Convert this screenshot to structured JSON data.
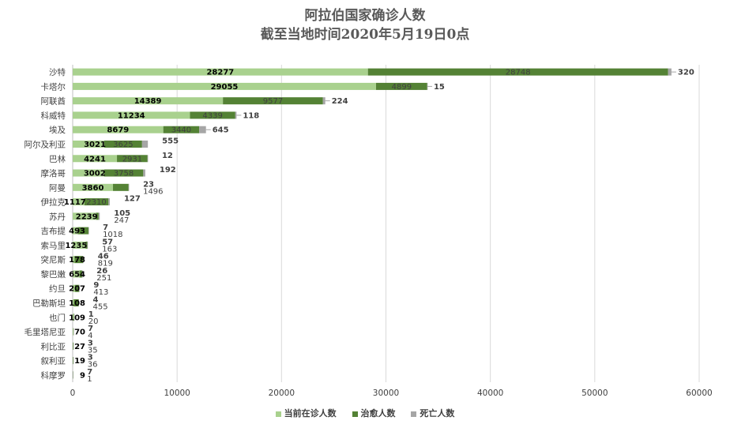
{
  "title": "阿拉伯国家确诊人数",
  "subtitle": "截至当地时间2020年5月19日0点",
  "colors": {
    "current": "#a9d18e",
    "recovered": "#548235",
    "deaths": "#a6a6a6"
  },
  "chart_data": {
    "type": "bar",
    "orientation": "horizontal",
    "stacked": true,
    "title": "阿拉伯国家确诊人数",
    "subtitle": "截至当地时间2020年5月19日0点",
    "categories": [
      "沙特",
      "卡塔尔",
      "阿联酋",
      "科威特",
      "埃及",
      "阿尔及利亚",
      "巴林",
      "摩洛哥",
      "阿曼",
      "伊拉克",
      "苏丹",
      "吉布提",
      "索马里",
      "突尼斯",
      "黎巴嫩",
      "约旦",
      "巴勒斯坦",
      "也门",
      "毛里塔尼亚",
      "利比亚",
      "叙利亚",
      "科摩罗"
    ],
    "series": [
      {
        "name": "当前在诊人数",
        "values": [
          28277,
          29055,
          14389,
          11234,
          8679,
          3021,
          4241,
          3002,
          3860,
          1117,
          2239,
          493,
          1235,
          178,
          654,
          207,
          108,
          109,
          70,
          27,
          19,
          9
        ]
      },
      {
        "name": "治愈人数",
        "values": [
          28748,
          4899,
          9577,
          4339,
          3440,
          3625,
          2931,
          3758,
          1496,
          2310,
          247,
          1018,
          163,
          819,
          251,
          413,
          455,
          20,
          4,
          35,
          36,
          1
        ]
      },
      {
        "name": "死亡人数",
        "values": [
          320,
          15,
          224,
          118,
          645,
          555,
          12,
          192,
          23,
          127,
          105,
          7,
          57,
          46,
          26,
          9,
          4,
          1,
          7,
          3,
          3,
          7
        ]
      }
    ],
    "xlim": [
      0,
      60000
    ],
    "xticks": [
      0,
      10000,
      20000,
      30000,
      40000,
      50000,
      60000
    ],
    "grid": true,
    "legend": "bottom"
  }
}
